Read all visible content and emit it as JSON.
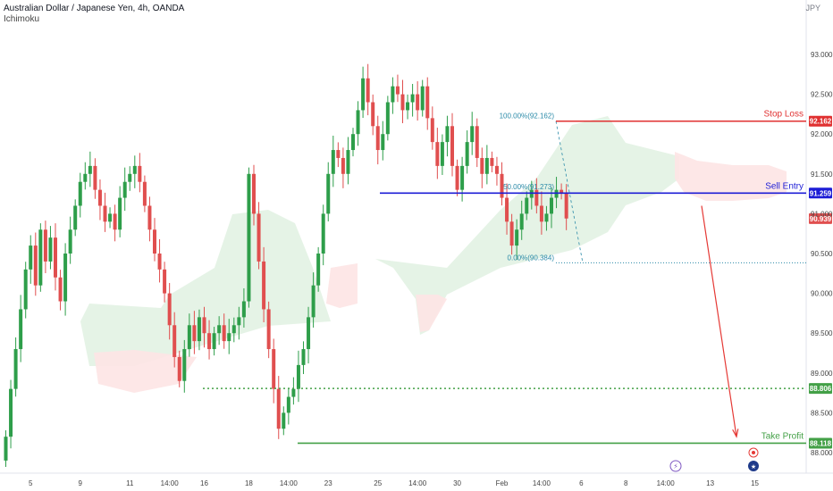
{
  "header": {
    "title": "Australian Dollar / Japanese Yen, 4h, OANDA",
    "indicator": "Ichimoku",
    "currency": "JPY"
  },
  "colors": {
    "up": "#26a69a",
    "up_body": "#2e9e4a",
    "down": "#e04f4f",
    "stop_loss": "#e03131",
    "sell_entry": "#1d1dd6",
    "take_profit": "#43a047",
    "current": "#e04f4f",
    "axis_text": "#444444",
    "cloud_bull": "#e2f2e3",
    "cloud_bear": "#fde4e4",
    "fib": "#2a8aa8"
  },
  "chart_data": {
    "type": "candlestick",
    "symbol": "AUDJPY",
    "timeframe": "4h",
    "yaxis": {
      "ticks": [
        93.0,
        92.5,
        92.0,
        91.5,
        91.0,
        90.5,
        90.0,
        89.5,
        89.0,
        88.5,
        88.0
      ],
      "range": [
        87.9,
        93.4
      ]
    },
    "xaxis": {
      "ticks": [
        {
          "label": "5",
          "i": 5
        },
        {
          "label": "9",
          "i": 15
        },
        {
          "label": "11",
          "i": 25
        },
        {
          "label": "14:00",
          "i": 33
        },
        {
          "label": "16",
          "i": 40
        },
        {
          "label": "18",
          "i": 49
        },
        {
          "label": "14:00",
          "i": 57
        },
        {
          "label": "23",
          "i": 65
        },
        {
          "label": "25",
          "i": 75
        },
        {
          "label": "14:00",
          "i": 83
        },
        {
          "label": "30",
          "i": 91
        },
        {
          "label": "Feb",
          "i": 100
        },
        {
          "label": "14:00",
          "i": 108
        },
        {
          "label": "6",
          "i": 116
        },
        {
          "label": "8",
          "i": 125
        },
        {
          "label": "14:00",
          "i": 133
        },
        {
          "label": "13",
          "i": 142
        },
        {
          "label": "15",
          "i": 151
        }
      ]
    },
    "candles": [
      [
        87.9,
        88.2
      ],
      [
        88.2,
        88.8
      ],
      [
        88.8,
        89.3
      ],
      [
        89.3,
        89.8
      ],
      [
        89.8,
        90.3
      ],
      [
        90.3,
        90.6
      ],
      [
        90.6,
        90.1
      ],
      [
        90.1,
        90.8
      ],
      [
        90.8,
        90.4
      ],
      [
        90.4,
        90.7
      ],
      [
        90.7,
        90.2
      ],
      [
        90.2,
        89.9
      ],
      [
        89.9,
        90.5
      ],
      [
        90.5,
        90.8
      ],
      [
        90.8,
        91.1
      ],
      [
        91.1,
        91.4
      ],
      [
        91.4,
        91.5
      ],
      [
        91.5,
        91.6
      ],
      [
        91.6,
        91.3
      ],
      [
        91.3,
        91.1
      ],
      [
        91.1,
        90.9
      ],
      [
        90.9,
        91.0
      ],
      [
        91.0,
        90.8
      ],
      [
        90.8,
        91.2
      ],
      [
        91.2,
        91.4
      ],
      [
        91.4,
        91.5
      ],
      [
        91.5,
        91.6
      ],
      [
        91.6,
        91.4
      ],
      [
        91.4,
        91.1
      ],
      [
        91.1,
        90.8
      ],
      [
        90.8,
        90.5
      ],
      [
        90.5,
        90.3
      ],
      [
        90.3,
        90.0
      ],
      [
        90.0,
        89.6
      ],
      [
        89.6,
        89.2
      ],
      [
        89.2,
        88.9
      ],
      [
        88.9,
        89.3
      ],
      [
        89.3,
        89.6
      ],
      [
        89.6,
        89.4
      ],
      [
        89.4,
        89.7
      ],
      [
        89.7,
        89.5
      ],
      [
        89.5,
        89.3
      ],
      [
        89.3,
        89.5
      ],
      [
        89.5,
        89.6
      ],
      [
        89.6,
        89.4
      ],
      [
        89.4,
        89.5
      ],
      [
        89.5,
        89.6
      ],
      [
        89.6,
        89.7
      ],
      [
        89.7,
        89.9
      ],
      [
        89.9,
        91.5
      ],
      [
        91.5,
        91.0
      ],
      [
        91.0,
        90.4
      ],
      [
        90.4,
        89.8
      ],
      [
        89.8,
        89.3
      ],
      [
        89.3,
        88.8
      ],
      [
        88.8,
        88.3
      ],
      [
        88.3,
        88.5
      ],
      [
        88.5,
        88.7
      ],
      [
        88.7,
        88.8
      ],
      [
        88.8,
        89.1
      ],
      [
        89.1,
        89.3
      ],
      [
        89.3,
        89.7
      ],
      [
        89.7,
        90.1
      ],
      [
        90.1,
        90.5
      ],
      [
        90.5,
        91.0
      ],
      [
        91.0,
        91.5
      ],
      [
        91.5,
        91.8
      ],
      [
        91.8,
        91.7
      ],
      [
        91.7,
        91.5
      ],
      [
        91.5,
        91.8
      ],
      [
        91.8,
        92.0
      ],
      [
        92.0,
        92.3
      ],
      [
        92.3,
        92.7
      ],
      [
        92.7,
        92.4
      ],
      [
        92.4,
        92.1
      ],
      [
        92.1,
        91.8
      ],
      [
        91.8,
        92.0
      ],
      [
        92.0,
        92.4
      ],
      [
        92.4,
        92.6
      ],
      [
        92.6,
        92.5
      ],
      [
        92.5,
        92.3
      ],
      [
        92.3,
        92.4
      ],
      [
        92.4,
        92.5
      ],
      [
        92.5,
        92.3
      ],
      [
        92.3,
        92.6
      ],
      [
        92.6,
        92.2
      ],
      [
        92.2,
        91.9
      ],
      [
        91.9,
        91.6
      ],
      [
        91.6,
        91.9
      ],
      [
        91.9,
        92.1
      ],
      [
        92.1,
        91.6
      ],
      [
        91.6,
        91.3
      ],
      [
        91.3,
        91.6
      ],
      [
        91.6,
        91.9
      ],
      [
        91.9,
        92.1
      ],
      [
        92.1,
        91.7
      ],
      [
        91.7,
        91.5
      ],
      [
        91.5,
        91.7
      ],
      [
        91.7,
        91.6
      ],
      [
        91.6,
        91.5
      ],
      [
        91.5,
        91.2
      ],
      [
        91.2,
        90.9
      ],
      [
        90.9,
        90.6
      ],
      [
        90.6,
        90.8
      ],
      [
        90.8,
        91.0
      ],
      [
        91.0,
        91.2
      ],
      [
        91.2,
        91.3
      ],
      [
        91.3,
        91.1
      ],
      [
        91.1,
        90.9
      ],
      [
        90.9,
        91.0
      ],
      [
        91.0,
        91.2
      ],
      [
        91.2,
        91.3
      ],
      [
        91.3,
        91.26
      ],
      [
        91.26,
        90.94
      ]
    ],
    "ichimoku_cloud": [
      {
        "kind": "bull",
        "span": [
          0.62,
          0.64
        ],
        "top": [
          90.5
        ],
        "bottom": [
          89.0
        ]
      },
      {
        "kind": "bear",
        "span": [
          0.66,
          0.7
        ]
      }
    ],
    "fibonacci": {
      "levels": [
        {
          "label": "100.00%(92.162)",
          "price": 92.162
        },
        {
          "label": "50.00%(91.273)",
          "price": 91.273
        },
        {
          "label": "0.00%(90.384)",
          "price": 90.384
        }
      ]
    },
    "levels": [
      {
        "name": "Stop Loss",
        "label": "Stop Loss",
        "price": 92.162,
        "price_label": "92.162",
        "style": "solid",
        "color_key": "stop_loss"
      },
      {
        "name": "Sell Entry",
        "label": "Sell Entry",
        "price": 91.259,
        "price_label": "91.259",
        "style": "solid",
        "color_key": "sell_entry"
      },
      {
        "name": "Current",
        "label": "",
        "price": 90.939,
        "price_label": "90.939",
        "style": "none",
        "color_key": "current"
      },
      {
        "name": "Support",
        "label": "",
        "price": 88.806,
        "price_label": "88.806",
        "style": "dotted",
        "color_key": "take_profit"
      },
      {
        "name": "Take Profit",
        "label": "Take Profit",
        "price": 88.118,
        "price_label": "88.118",
        "style": "solid",
        "color_key": "take_profit"
      }
    ],
    "projection": {
      "from_price": 91.1,
      "to_price": 88.2
    }
  }
}
